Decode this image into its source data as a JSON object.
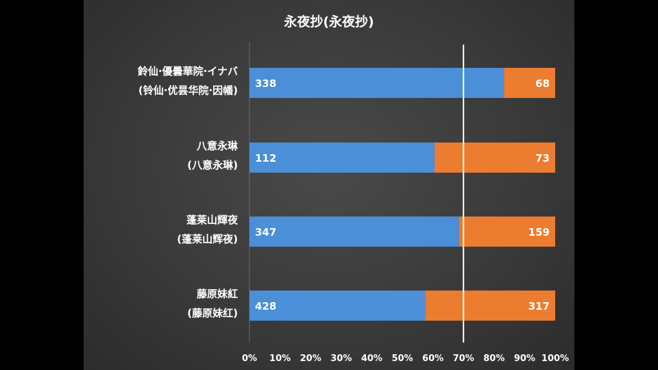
{
  "chart_data": {
    "type": "bar",
    "stacked": "percent",
    "orientation": "horizontal",
    "title": "永夜抄(永夜抄)",
    "categories": [
      {
        "label_line1": "鈴仙·優曇華院·イナバ",
        "label_line2": "(铃仙·优昙华院·因幡)"
      },
      {
        "label_line1": "八意永琳",
        "label_line2": "(八意永琳)"
      },
      {
        "label_line1": "蓬莱山輝夜",
        "label_line2": "(蓬莱山辉夜)"
      },
      {
        "label_line1": "藤原妹紅",
        "label_line2": "(藤原妹红)"
      }
    ],
    "series": [
      {
        "values": [
          338,
          112,
          347,
          428
        ],
        "color": "#4a8fd8"
      },
      {
        "values": [
          68,
          73,
          159,
          317
        ],
        "color": "#ec7c30"
      }
    ],
    "x_ticks": [
      "0%",
      "10%",
      "20%",
      "30%",
      "40%",
      "50%",
      "60%",
      "70%",
      "80%",
      "90%",
      "100%"
    ],
    "xlim": [
      0,
      100
    ],
    "reference_line": 70,
    "grid": false,
    "background": "#3d3d3d",
    "text_color": "#ffffff"
  }
}
